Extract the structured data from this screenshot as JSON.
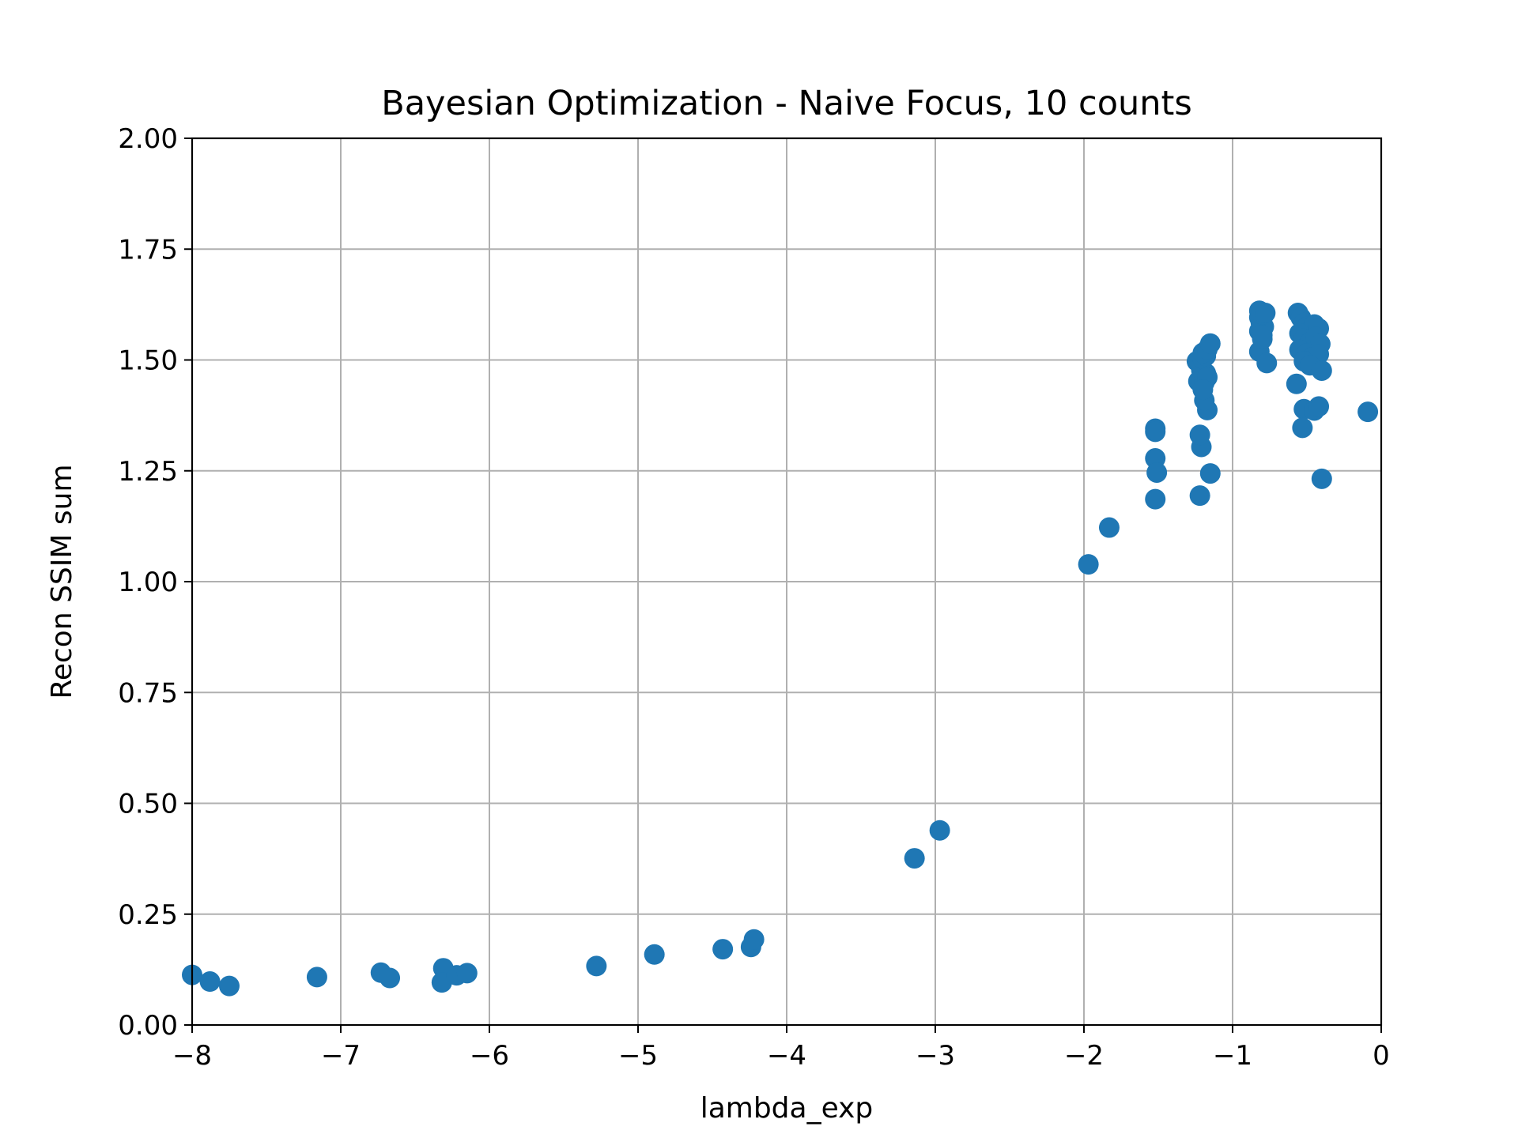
{
  "chart_data": {
    "type": "scatter",
    "title": "Bayesian Optimization - Naive Focus, 10 counts",
    "xlabel": "lambda_exp",
    "ylabel": "Recon SSIM sum",
    "xlim": [
      -8,
      0
    ],
    "ylim": [
      0,
      2
    ],
    "xticks": [
      -8,
      -7,
      -6,
      -5,
      -4,
      -3,
      -2,
      -1,
      0
    ],
    "xtick_labels": [
      "−8",
      "−7",
      "−6",
      "−5",
      "−4",
      "−3",
      "−2",
      "−1",
      "0"
    ],
    "yticks": [
      0,
      0.25,
      0.5,
      0.75,
      1.0,
      1.25,
      1.5,
      1.75,
      2.0
    ],
    "ytick_labels": [
      "0.00",
      "0.25",
      "0.50",
      "0.75",
      "1.00",
      "1.25",
      "1.50",
      "1.75",
      "2.00"
    ],
    "grid": true,
    "marker_color": "#1f77b4",
    "points": [
      [
        -8.0,
        0.113
      ],
      [
        -7.88,
        0.098
      ],
      [
        -7.75,
        0.088
      ],
      [
        -7.16,
        0.108
      ],
      [
        -6.73,
        0.118
      ],
      [
        -6.67,
        0.106
      ],
      [
        -6.31,
        0.128
      ],
      [
        -6.32,
        0.096
      ],
      [
        -6.22,
        0.112
      ],
      [
        -6.15,
        0.117
      ],
      [
        -5.28,
        0.133
      ],
      [
        -4.89,
        0.159
      ],
      [
        -4.43,
        0.171
      ],
      [
        -4.24,
        0.176
      ],
      [
        -4.22,
        0.193
      ],
      [
        -3.14,
        0.376
      ],
      [
        -2.97,
        0.439
      ],
      [
        -1.97,
        1.039
      ],
      [
        -1.83,
        1.122
      ],
      [
        -1.52,
        1.345
      ],
      [
        -1.52,
        1.338
      ],
      [
        -1.52,
        1.278
      ],
      [
        -1.51,
        1.246
      ],
      [
        -1.52,
        1.186
      ],
      [
        -1.22,
        1.194
      ],
      [
        -1.21,
        1.304
      ],
      [
        -1.22,
        1.331
      ],
      [
        -1.15,
        1.244
      ],
      [
        -1.17,
        1.387
      ],
      [
        -1.19,
        1.409
      ],
      [
        -1.23,
        1.452
      ],
      [
        -1.19,
        1.449
      ],
      [
        -1.18,
        1.47
      ],
      [
        -1.21,
        1.477
      ],
      [
        -1.24,
        1.497
      ],
      [
        -1.2,
        1.502
      ],
      [
        -1.18,
        1.509
      ],
      [
        -1.2,
        1.516
      ],
      [
        -1.17,
        1.524
      ],
      [
        -1.15,
        1.537
      ],
      [
        -1.17,
        1.461
      ],
      [
        -1.2,
        1.433
      ],
      [
        -0.82,
        1.519
      ],
      [
        -0.77,
        1.493
      ],
      [
        -0.8,
        1.547
      ],
      [
        -0.82,
        1.565
      ],
      [
        -0.79,
        1.575
      ],
      [
        -0.81,
        1.585
      ],
      [
        -0.82,
        1.596
      ],
      [
        -0.8,
        1.603
      ],
      [
        -0.82,
        1.611
      ],
      [
        -0.78,
        1.606
      ],
      [
        -0.8,
        1.556
      ],
      [
        -0.56,
        1.606
      ],
      [
        -0.54,
        1.595
      ],
      [
        -0.52,
        1.583
      ],
      [
        -0.5,
        1.575
      ],
      [
        -0.47,
        1.567
      ],
      [
        -0.45,
        1.58
      ],
      [
        -0.42,
        1.571
      ],
      [
        -0.55,
        1.56
      ],
      [
        -0.52,
        1.548
      ],
      [
        -0.48,
        1.54
      ],
      [
        -0.44,
        1.552
      ],
      [
        -0.41,
        1.536
      ],
      [
        -0.55,
        1.523
      ],
      [
        -0.5,
        1.515
      ],
      [
        -0.46,
        1.506
      ],
      [
        -0.42,
        1.513
      ],
      [
        -0.52,
        1.497
      ],
      [
        -0.48,
        1.488
      ],
      [
        -0.4,
        1.476
      ],
      [
        -0.57,
        1.446
      ],
      [
        -0.52,
        1.389
      ],
      [
        -0.45,
        1.386
      ],
      [
        -0.42,
        1.395
      ],
      [
        -0.53,
        1.347
      ],
      [
        -0.4,
        1.232
      ],
      [
        -0.09,
        1.383
      ]
    ]
  }
}
